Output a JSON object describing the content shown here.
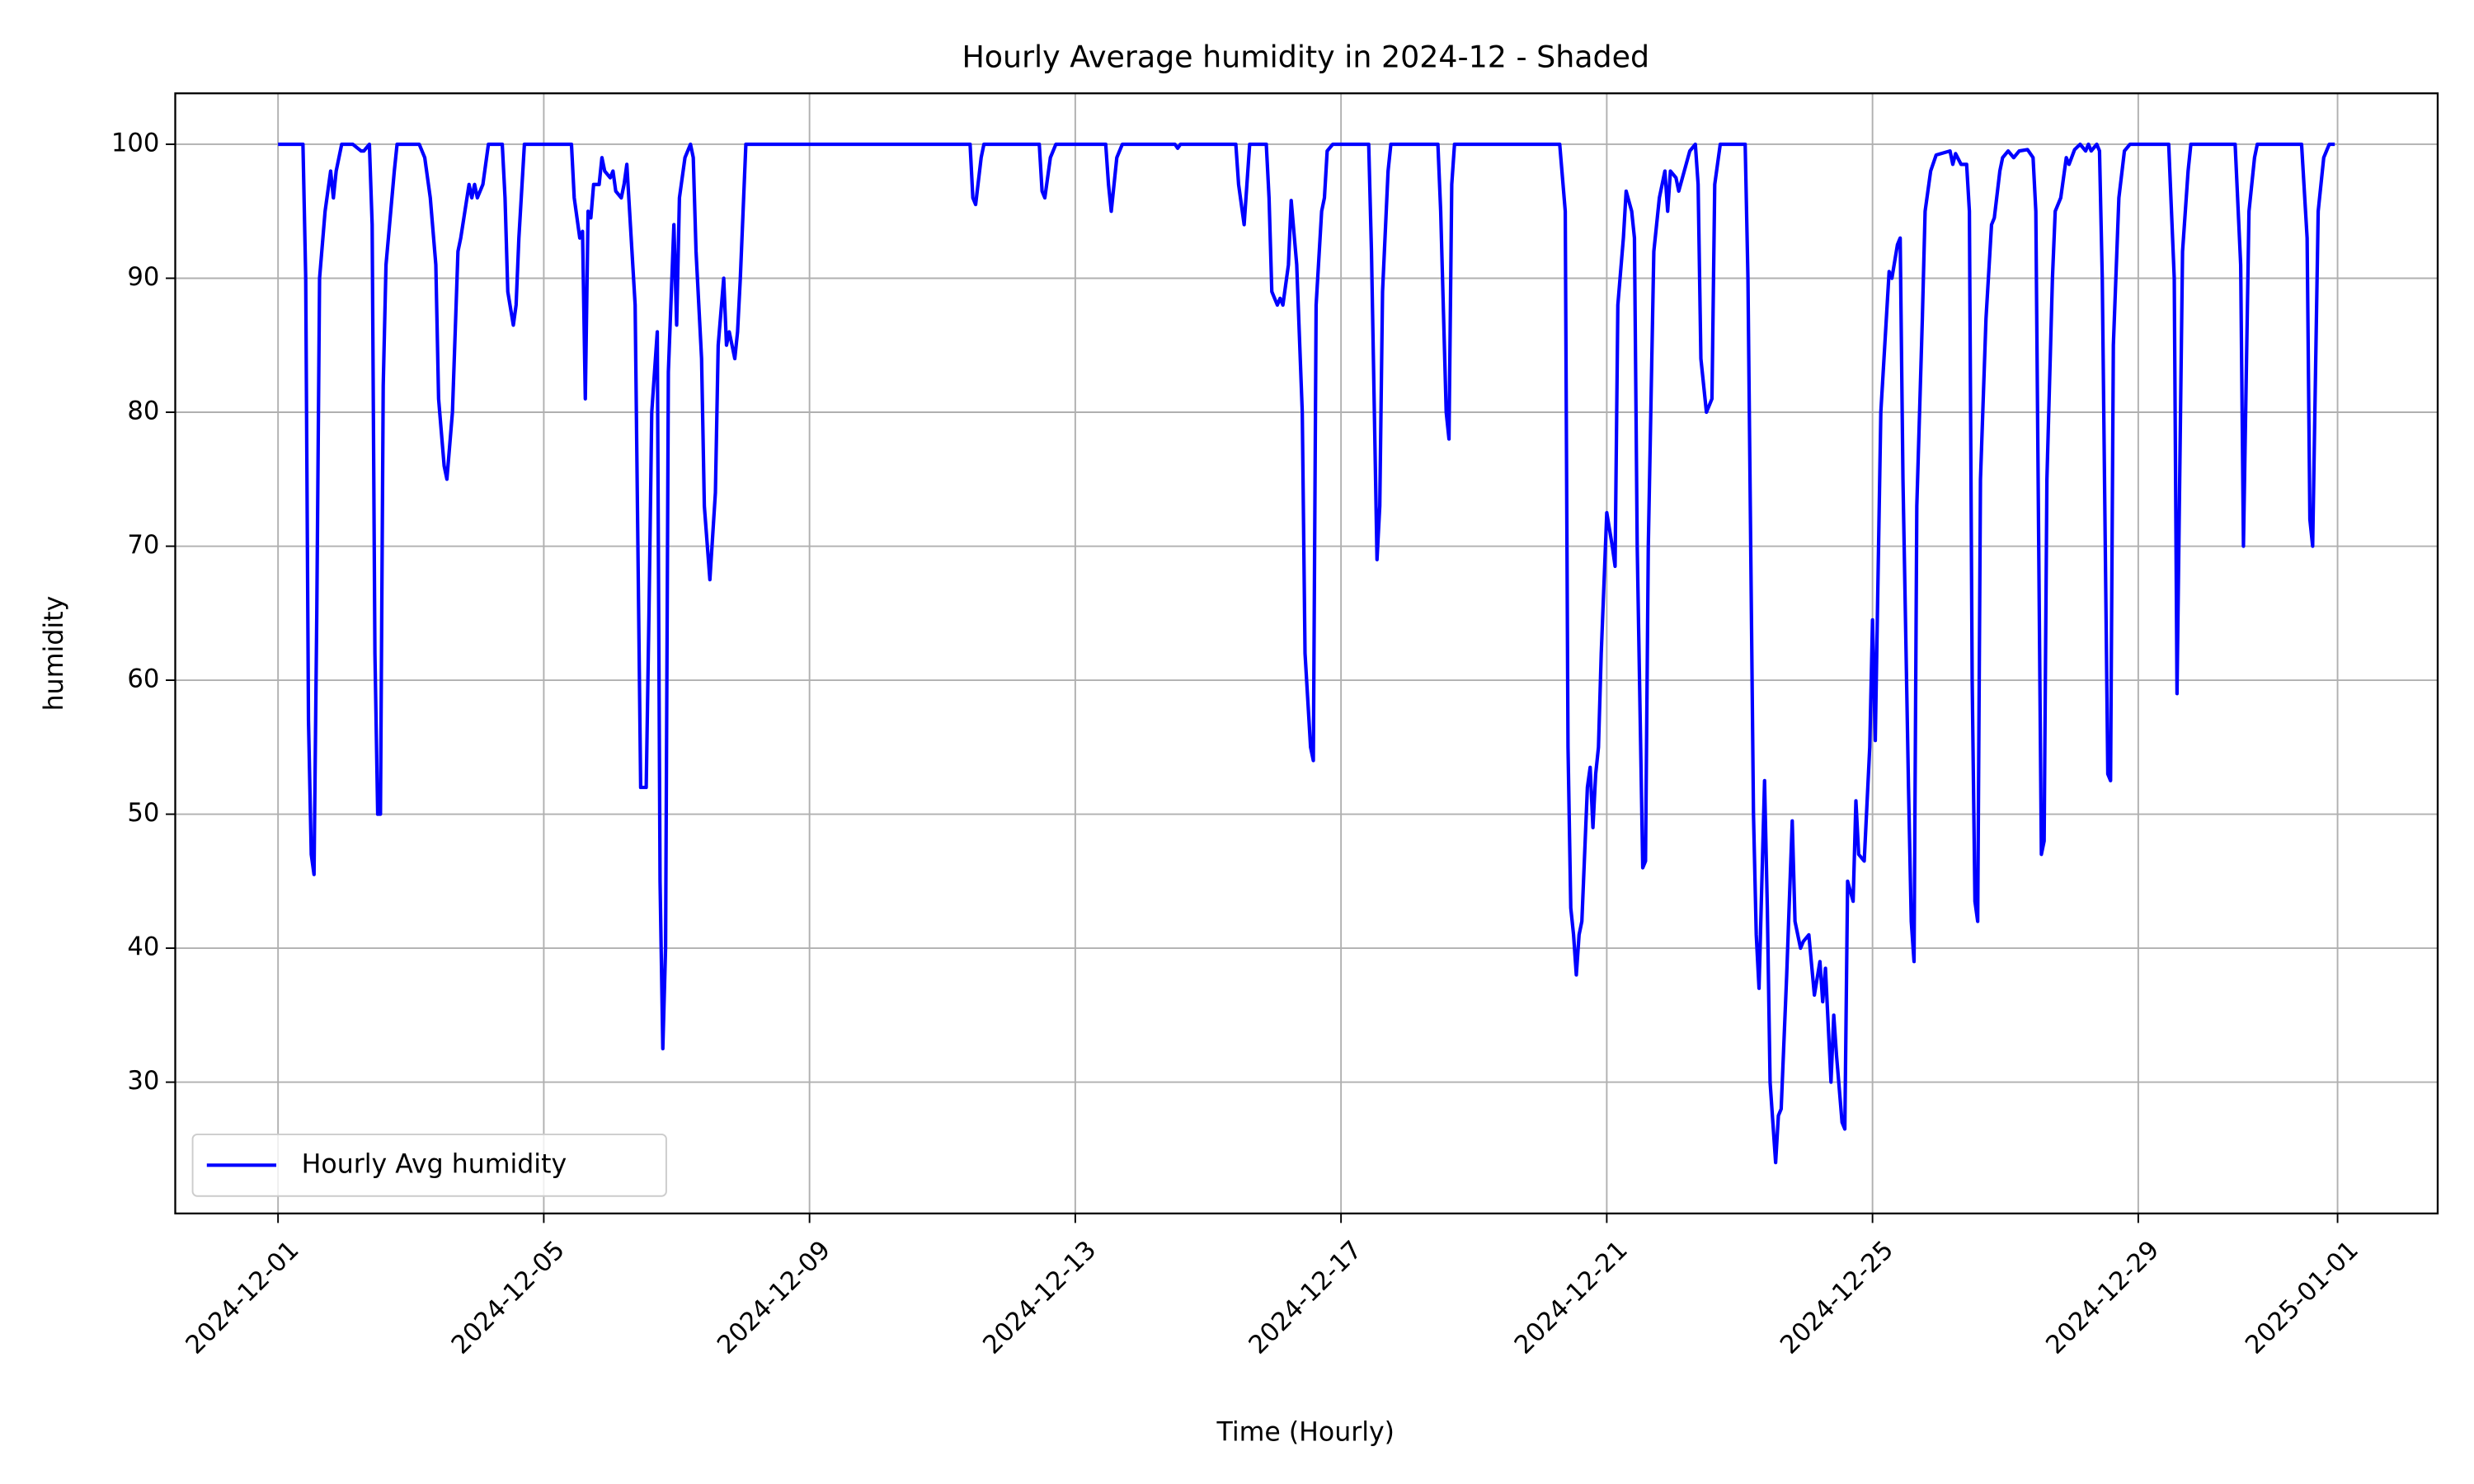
{
  "chart_data": {
    "type": "line",
    "title": "Hourly Average humidity in 2024-12 - Shaded",
    "x_label": "Time (Hourly)",
    "y_label": "humidity",
    "grid": true,
    "legend": "lower left",
    "xlim": [
      "2024-11-29 10:52",
      "2025-01-02 12:10"
    ],
    "xticks": [
      "2024-12-01",
      "2024-12-05",
      "2024-12-09",
      "2024-12-13",
      "2024-12-17",
      "2024-12-21",
      "2024-12-25",
      "2024-12-29",
      "2025-01-01"
    ],
    "ylim": [
      20.2,
      103.8
    ],
    "yticks": [
      30,
      40,
      50,
      60,
      70,
      80,
      90,
      100
    ],
    "x": [
      "2024-12-01 00:00",
      "2024-12-01 09:00",
      "2024-12-01 10:00",
      "2024-12-01 11:00",
      "2024-12-01 12:00",
      "2024-12-01 13:00",
      "2024-12-01 14:00",
      "2024-12-01 15:00",
      "2024-12-01 17:00",
      "2024-12-01 19:00",
      "2024-12-01 20:00",
      "2024-12-01 21:00",
      "2024-12-01 23:00",
      "2024-12-02 03:00",
      "2024-12-02 06:00",
      "2024-12-02 07:00",
      "2024-12-02 09:00",
      "2024-12-02 10:00",
      "2024-12-02 11:00",
      "2024-12-02 12:00",
      "2024-12-02 13:00",
      "2024-12-02 14:00",
      "2024-12-02 15:00",
      "2024-12-02 18:00",
      "2024-12-02 19:00",
      "2024-12-02 23:00",
      "2024-12-03 03:00",
      "2024-12-03 05:00",
      "2024-12-03 07:00",
      "2024-12-03 09:00",
      "2024-12-03 10:00",
      "2024-12-03 12:00",
      "2024-12-03 13:00",
      "2024-12-03 15:00",
      "2024-12-03 17:00",
      "2024-12-03 18:00",
      "2024-12-03 21:00",
      "2024-12-03 22:00",
      "2024-12-03 23:00",
      "2024-12-04 00:00",
      "2024-12-04 02:00",
      "2024-12-04 04:00",
      "2024-12-04 09:00",
      "2024-12-04 10:00",
      "2024-12-04 11:00",
      "2024-12-04 13:00",
      "2024-12-04 14:00",
      "2024-12-04 15:00",
      "2024-12-04 17:00",
      "2024-12-05 10:00",
      "2024-12-05 11:00",
      "2024-12-05 13:00",
      "2024-12-05 14:00",
      "2024-12-05 15:00",
      "2024-12-05 16:00",
      "2024-12-05 17:00",
      "2024-12-05 18:00",
      "2024-12-05 20:00",
      "2024-12-05 21:00",
      "2024-12-05 22:00",
      "2024-12-06 00:00",
      "2024-12-06 01:00",
      "2024-12-06 02:00",
      "2024-12-06 04:00",
      "2024-12-06 05:00",
      "2024-12-06 06:00",
      "2024-12-06 07:00",
      "2024-12-06 09:00",
      "2024-12-06 10:00",
      "2024-12-06 11:00",
      "2024-12-06 13:00",
      "2024-12-06 14:00",
      "2024-12-06 15:00",
      "2024-12-06 17:00",
      "2024-12-06 18:00",
      "2024-12-06 19:00",
      "2024-12-06 20:00",
      "2024-12-06 21:00",
      "2024-12-06 23:00",
      "2024-12-07 00:00",
      "2024-12-07 01:00",
      "2024-12-07 03:00",
      "2024-12-07 05:00",
      "2024-12-07 06:00",
      "2024-12-07 07:00",
      "2024-12-07 09:00",
      "2024-12-07 10:00",
      "2024-12-07 12:00",
      "2024-12-07 14:00",
      "2024-12-07 15:00",
      "2024-12-07 17:00",
      "2024-12-07 18:00",
      "2024-12-07 19:00",
      "2024-12-07 21:00",
      "2024-12-07 22:00",
      "2024-12-07 23:00",
      "2024-12-08 01:00",
      "2024-12-11 10:00",
      "2024-12-11 11:00",
      "2024-12-11 12:00",
      "2024-12-11 14:00",
      "2024-12-11 15:00",
      "2024-12-12 11:00",
      "2024-12-12 12:00",
      "2024-12-12 13:00",
      "2024-12-12 15:00",
      "2024-12-12 17:00",
      "2024-12-13 11:00",
      "2024-12-13 12:00",
      "2024-12-13 13:00",
      "2024-12-13 15:00",
      "2024-12-13 17:00",
      "2024-12-14 12:00",
      "2024-12-14 13:00",
      "2024-12-14 14:00",
      "2024-12-15 10:00",
      "2024-12-15 11:00",
      "2024-12-15 13:00",
      "2024-12-15 14:00",
      "2024-12-15 15:00",
      "2024-12-15 21:00",
      "2024-12-15 22:00",
      "2024-12-15 23:00",
      "2024-12-16 01:00",
      "2024-12-16 02:00",
      "2024-12-16 03:00",
      "2024-12-16 05:00",
      "2024-12-16 06:00",
      "2024-12-16 08:00",
      "2024-12-16 10:00",
      "2024-12-16 11:00",
      "2024-12-16 13:00",
      "2024-12-16 14:00",
      "2024-12-16 15:00",
      "2024-12-16 17:00",
      "2024-12-16 18:00",
      "2024-12-16 19:00",
      "2024-12-16 21:00",
      "2024-12-17 10:00",
      "2024-12-17 11:00",
      "2024-12-17 13:00",
      "2024-12-17 14:00",
      "2024-12-17 15:00",
      "2024-12-17 17:00",
      "2024-12-17 18:00",
      "2024-12-18 11:00",
      "2024-12-18 12:00",
      "2024-12-18 14:00",
      "2024-12-18 15:00",
      "2024-12-18 16:00",
      "2024-12-18 17:00",
      "2024-12-20 07:00",
      "2024-12-20 09:00",
      "2024-12-20 10:00",
      "2024-12-20 11:00",
      "2024-12-20 12:00",
      "2024-12-20 13:00",
      "2024-12-20 14:00",
      "2024-12-20 15:00",
      "2024-12-20 17:00",
      "2024-12-20 18:00",
      "2024-12-20 19:00",
      "2024-12-20 20:00",
      "2024-12-20 21:00",
      "2024-12-20 22:00",
      "2024-12-21 00:00",
      "2024-12-21 02:00",
      "2024-12-21 03:00",
      "2024-12-21 04:00",
      "2024-12-21 06:00",
      "2024-12-21 07:00",
      "2024-12-21 09:00",
      "2024-12-21 10:00",
      "2024-12-21 11:00",
      "2024-12-21 13:00",
      "2024-12-21 14:00",
      "2024-12-21 15:00",
      "2024-12-21 17:00",
      "2024-12-21 19:00",
      "2024-12-21 21:00",
      "2024-12-21 22:00",
      "2024-12-21 23:00",
      "2024-12-22 01:00",
      "2024-12-22 02:00",
      "2024-12-22 04:00",
      "2024-12-22 06:00",
      "2024-12-22 08:00",
      "2024-12-22 09:00",
      "2024-12-22 10:00",
      "2024-12-22 12:00",
      "2024-12-22 14:00",
      "2024-12-22 15:00",
      "2024-12-22 17:00",
      "2024-12-23 02:00",
      "2024-12-23 03:00",
      "2024-12-23 05:00",
      "2024-12-23 06:00",
      "2024-12-23 07:00",
      "2024-12-23 09:00",
      "2024-12-23 10:00",
      "2024-12-23 11:00",
      "2024-12-23 13:00",
      "2024-12-23 14:00",
      "2024-12-23 15:00",
      "2024-12-23 17:00",
      "2024-12-23 19:00",
      "2024-12-23 20:00",
      "2024-12-23 22:00",
      "2024-12-23 23:00",
      "2024-12-24 01:00",
      "2024-12-24 03:00",
      "2024-12-24 05:00",
      "2024-12-24 06:00",
      "2024-12-24 07:00",
      "2024-12-24 09:00",
      "2024-12-24 10:00",
      "2024-12-24 11:00",
      "2024-12-24 13:00",
      "2024-12-24 14:00",
      "2024-12-24 15:00",
      "2024-12-24 17:00",
      "2024-12-24 18:00",
      "2024-12-24 19:00",
      "2024-12-24 21:00",
      "2024-12-24 23:00",
      "2024-12-25 00:00",
      "2024-12-25 01:00",
      "2024-12-25 03:00",
      "2024-12-25 05:00",
      "2024-12-25 06:00",
      "2024-12-25 07:00",
      "2024-12-25 09:00",
      "2024-12-25 10:00",
      "2024-12-25 11:00",
      "2024-12-25 13:00",
      "2024-12-25 14:00",
      "2024-12-25 15:00",
      "2024-12-25 16:00",
      "2024-12-25 18:00",
      "2024-12-25 19:00",
      "2024-12-25 21:00",
      "2024-12-25 23:00",
      "2024-12-26 04:00",
      "2024-12-26 05:00",
      "2024-12-26 06:00",
      "2024-12-26 08:00",
      "2024-12-26 10:00",
      "2024-12-26 11:00",
      "2024-12-26 12:00",
      "2024-12-26 13:00",
      "2024-12-26 14:00",
      "2024-12-26 15:00",
      "2024-12-26 17:00",
      "2024-12-26 19:00",
      "2024-12-26 20:00",
      "2024-12-26 22:00",
      "2024-12-26 23:00",
      "2024-12-27 01:00",
      "2024-12-27 03:00",
      "2024-12-27 05:00",
      "2024-12-27 08:00",
      "2024-12-27 10:00",
      "2024-12-27 11:00",
      "2024-12-27 13:00",
      "2024-12-27 14:00",
      "2024-12-27 15:00",
      "2024-12-27 17:00",
      "2024-12-27 18:00",
      "2024-12-27 20:00",
      "2024-12-27 22:00",
      "2024-12-27 23:00",
      "2024-12-28 01:00",
      "2024-12-28 03:00",
      "2024-12-28 05:00",
      "2024-12-28 06:00",
      "2024-12-28 07:00",
      "2024-12-28 09:00",
      "2024-12-28 10:00",
      "2024-12-28 11:00",
      "2024-12-28 13:00",
      "2024-12-28 14:00",
      "2024-12-28 15:00",
      "2024-12-28 17:00",
      "2024-12-28 19:00",
      "2024-12-28 21:00",
      "2024-12-29 11:00",
      "2024-12-29 13:00",
      "2024-12-29 14:00",
      "2024-12-29 16:00",
      "2024-12-29 18:00",
      "2024-12-29 19:00",
      "2024-12-30 11:00",
      "2024-12-30 13:00",
      "2024-12-30 14:00",
      "2024-12-30 16:00",
      "2024-12-30 18:00",
      "2024-12-30 19:00",
      "2024-12-31 11:00",
      "2024-12-31 13:00",
      "2024-12-31 14:00",
      "2024-12-31 15:00",
      "2024-12-31 17:00",
      "2024-12-31 19:00",
      "2024-12-31 21:00",
      "2024-12-31 23:00"
    ],
    "series": [
      {
        "name": "Hourly Avg humidity",
        "color": "#0000ff",
        "values": [
          100,
          100,
          90,
          57,
          47,
          45.5,
          65,
          90,
          95,
          98,
          96,
          98,
          100,
          100,
          99.5,
          99.5,
          100,
          94,
          62,
          50,
          50,
          82,
          91,
          98,
          100,
          100,
          100,
          99,
          96,
          91,
          81,
          76,
          75,
          80,
          92,
          93,
          97,
          96,
          97,
          96,
          97,
          100,
          100,
          96,
          89,
          86.5,
          88,
          93,
          100,
          100,
          96,
          93,
          93.5,
          81,
          95,
          94.5,
          97,
          97,
          99,
          98,
          97.5,
          98,
          96.5,
          96,
          97,
          98.5,
          95,
          88,
          70,
          52,
          52,
          65,
          80,
          86,
          45,
          32.5,
          40,
          83,
          94,
          86.5,
          96,
          99,
          100,
          99,
          92,
          84,
          73,
          67.5,
          74,
          85,
          90,
          85,
          86,
          84,
          86,
          90,
          100,
          100,
          96,
          95.5,
          99,
          100,
          100,
          96.5,
          96,
          99,
          100,
          100,
          97,
          95,
          99,
          100,
          100,
          99.7,
          100,
          100,
          97,
          94,
          97,
          100,
          100,
          96,
          89,
          88,
          88.5,
          88,
          91,
          95.8,
          91,
          80,
          62,
          55,
          54,
          88,
          95,
          96,
          99.5,
          100,
          100,
          92,
          69,
          73,
          89,
          98,
          100,
          100,
          95,
          80,
          78,
          97,
          100,
          100,
          95,
          55,
          43,
          41,
          38,
          41,
          42,
          52,
          53.5,
          49,
          53,
          55,
          62,
          72.5,
          70,
          68.5,
          88,
          93,
          96.5,
          95,
          93,
          70,
          46,
          46.5,
          70,
          92,
          96,
          98,
          95,
          98,
          97.5,
          96.5,
          98,
          99.5,
          100,
          97,
          84,
          80,
          81,
          97,
          100,
          100,
          90,
          50,
          41,
          37,
          52.5,
          43,
          30,
          24,
          27.5,
          28,
          38,
          49.5,
          42,
          40,
          40.5,
          41,
          36.5,
          39,
          36,
          38.5,
          30,
          35,
          32,
          27,
          26.5,
          45,
          43.5,
          51,
          47,
          46.5,
          55,
          64.5,
          55.5,
          80,
          87,
          90.5,
          90,
          92.5,
          93,
          75,
          52,
          42,
          39,
          73,
          87,
          95,
          98,
          99.2,
          99.5,
          98.5,
          99.3,
          98.5,
          98.5,
          95,
          60,
          43.5,
          42,
          75,
          87,
          94,
          94.5,
          98,
          99,
          99.5,
          99,
          99.5,
          99.6,
          99,
          95,
          47,
          48,
          75,
          90,
          95,
          96,
          99,
          98.5,
          99.6,
          100,
          99.5,
          100,
          99.5,
          100,
          99.5,
          90,
          53,
          52.5,
          85,
          96,
          99.5,
          100,
          100,
          90,
          59,
          92,
          98,
          100,
          100,
          91,
          70,
          95,
          99,
          100,
          100,
          93,
          72,
          70,
          95,
          99,
          100,
          100
        ]
      }
    ]
  }
}
